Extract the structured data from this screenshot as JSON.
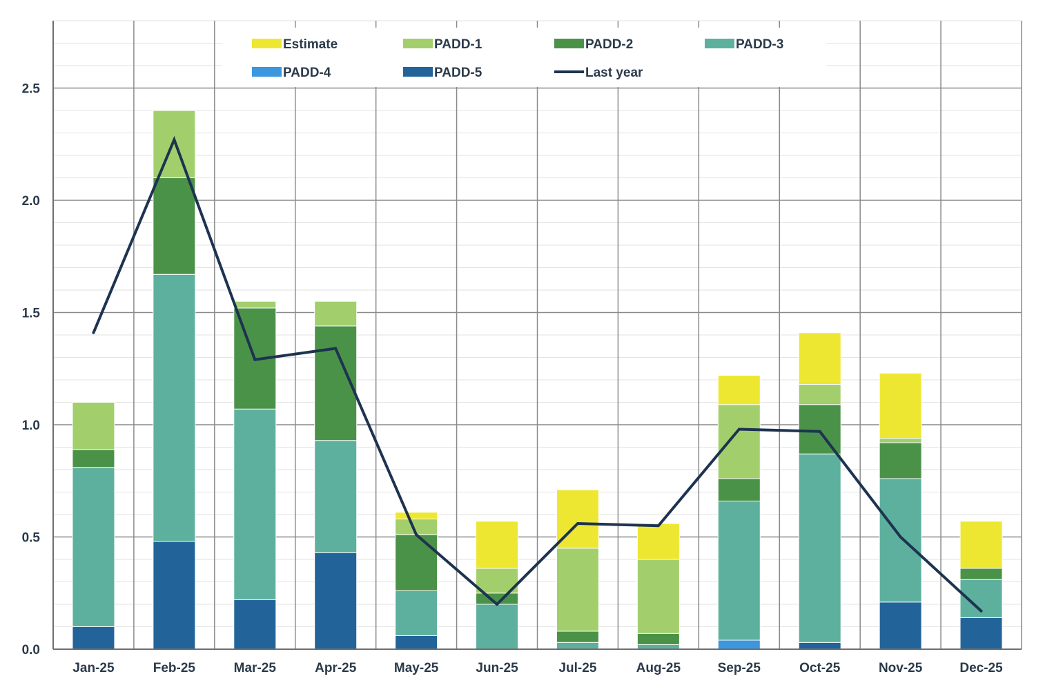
{
  "chart_data": {
    "type": "bar",
    "stacked": true,
    "title": "",
    "xlabel": "",
    "ylabel": "",
    "ylim": [
      0,
      2.8
    ],
    "yticks": [
      "0.0",
      "0.5",
      "1.0",
      "1.5",
      "2.0",
      "2.5"
    ],
    "grid": true,
    "legend_position": "top",
    "categories": [
      "Jan-25",
      "Feb-25",
      "Mar-25",
      "Apr-25",
      "May-25",
      "Jun-25",
      "Jul-25",
      "Aug-25",
      "Sep-25",
      "Oct-25",
      "Nov-25",
      "Dec-25"
    ],
    "series": [
      {
        "name": "PADD-5",
        "color": "#22649a",
        "values": [
          0.1,
          0.48,
          0.22,
          0.43,
          0.06,
          0.0,
          0.0,
          0.0,
          0.0,
          0.03,
          0.21,
          0.14
        ]
      },
      {
        "name": "PADD-4",
        "color": "#3b97de",
        "values": [
          0.0,
          0.0,
          0.0,
          0.0,
          0.0,
          0.0,
          0.0,
          0.0,
          0.04,
          0.0,
          0.0,
          0.0
        ]
      },
      {
        "name": "PADD-3",
        "color": "#5db09d",
        "values": [
          0.71,
          1.19,
          0.85,
          0.5,
          0.2,
          0.2,
          0.03,
          0.02,
          0.62,
          0.84,
          0.55,
          0.17
        ]
      },
      {
        "name": "PADD-2",
        "color": "#4b9249",
        "values": [
          0.08,
          0.43,
          0.45,
          0.51,
          0.25,
          0.05,
          0.05,
          0.05,
          0.1,
          0.22,
          0.16,
          0.05
        ]
      },
      {
        "name": "PADD-1",
        "color": "#a2cf6c",
        "values": [
          0.21,
          0.3,
          0.03,
          0.11,
          0.07,
          0.11,
          0.37,
          0.33,
          0.33,
          0.09,
          0.02,
          0.0
        ]
      },
      {
        "name": "Estimate",
        "color": "#eee731",
        "values": [
          0.0,
          0.0,
          0.0,
          0.0,
          0.03,
          0.21,
          0.26,
          0.16,
          0.13,
          0.23,
          0.29,
          0.21
        ]
      }
    ],
    "line_series": {
      "name": "Last year",
      "color": "#1d3350",
      "values": [
        1.41,
        2.27,
        1.29,
        1.34,
        0.51,
        0.2,
        0.56,
        0.55,
        0.98,
        0.97,
        0.5,
        0.17
      ]
    },
    "legend": [
      {
        "label": "Estimate",
        "color": "#eee731",
        "kind": "box"
      },
      {
        "label": "PADD-1",
        "color": "#a2cf6c",
        "kind": "box"
      },
      {
        "label": "PADD-2",
        "color": "#4b9249",
        "kind": "box"
      },
      {
        "label": "PADD-3",
        "color": "#5db09d",
        "kind": "box"
      },
      {
        "label": "PADD-4",
        "color": "#3b97de",
        "kind": "box"
      },
      {
        "label": "PADD-5",
        "color": "#22649a",
        "kind": "box"
      },
      {
        "label": "Last year",
        "color": "#1d3350",
        "kind": "line"
      }
    ]
  }
}
